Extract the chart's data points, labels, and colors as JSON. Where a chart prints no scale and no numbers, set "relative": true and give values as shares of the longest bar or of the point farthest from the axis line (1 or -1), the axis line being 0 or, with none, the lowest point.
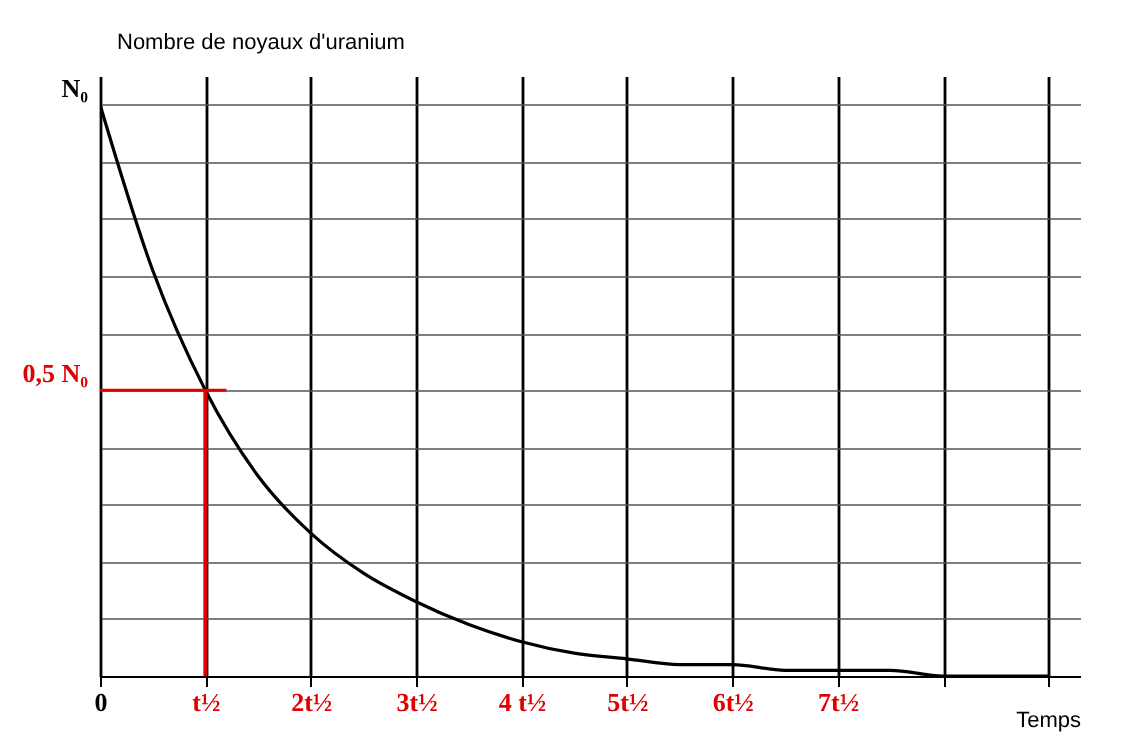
{
  "chart_data": {
    "type": "line",
    "xlabel": "Temps",
    "ylabel": "Nombre de noyaux d'uranium",
    "x": [
      0,
      0.5,
      1,
      1.5,
      2,
      2.5,
      3,
      3.5,
      4,
      4.5,
      5,
      5.5,
      6,
      6.5,
      7,
      7.5,
      8,
      8.5,
      9
    ],
    "series": [
      {
        "color": "#000000",
        "values": [
          1,
          0.71,
          0.5,
          0.35,
          0.25,
          0.18,
          0.13,
          0.09,
          0.06,
          0.04,
          0.03,
          0.02,
          0.02,
          0.01,
          0.01,
          0.01,
          0,
          0,
          0
        ]
      }
    ],
    "xlim": [
      0,
      9.3
    ],
    "relative": true,
    "annotations": [
      {
        "text": "N₀",
        "x": 0,
        "y": 1
      },
      {
        "text": "0,5 N₀",
        "x": 0,
        "y": 0.5
      }
    ],
    "xticks": [
      {
        "value": 0,
        "label": "0"
      },
      {
        "value": 1,
        "label": "t½"
      },
      {
        "value": 2,
        "label": "2t½"
      },
      {
        "value": 3,
        "label": "3t½"
      },
      {
        "value": 4,
        "label": "4 t½"
      },
      {
        "value": 5,
        "label": "5t½"
      },
      {
        "value": 6,
        "label": "6t½"
      },
      {
        "value": 7,
        "label": "7t½"
      },
      {
        "value": 8,
        "label": null
      },
      {
        "value": 9,
        "label": null
      }
    ],
    "ref_lines": [
      {
        "axis": "x",
        "value": 1,
        "color": "#e00000"
      },
      {
        "axis": "y",
        "value": 0.5,
        "color": "#e00000"
      }
    ],
    "grid": true,
    "marker": "none",
    "line_style": "solid"
  }
}
